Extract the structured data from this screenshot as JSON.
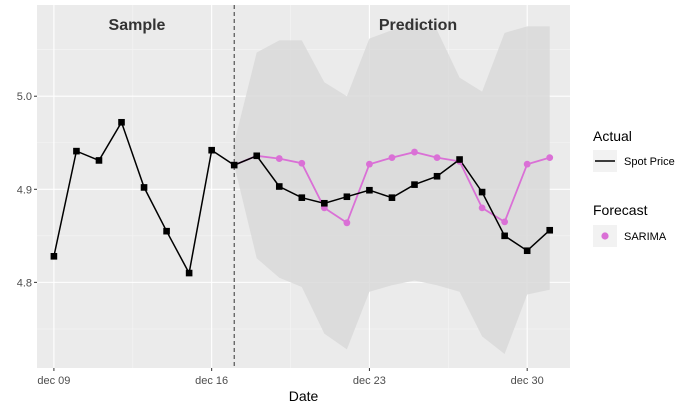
{
  "chart_data": {
    "type": "line",
    "xlabel": "Date",
    "ylabel": "",
    "title": "",
    "x_ticks": [
      {
        "day": 9,
        "label": "dec 09"
      },
      {
        "day": 16,
        "label": "dec 16"
      },
      {
        "day": 23,
        "label": "dec 23"
      },
      {
        "day": 30,
        "label": "dec 30"
      }
    ],
    "y_ticks": [
      {
        "value": 4.8,
        "label": "4.8"
      },
      {
        "value": 4.9,
        "label": "4.9"
      },
      {
        "value": 5.0,
        "label": "5.0"
      }
    ],
    "xlim": [
      8.25,
      31.9
    ],
    "ylim": [
      4.708,
      5.098
    ],
    "cutoff_day": 17,
    "regions": {
      "sample": "Sample",
      "prediction": "Prediction"
    },
    "series": [
      {
        "name": "Spot Price",
        "legend_group": "Actual",
        "color": "#000000",
        "marker": "square",
        "x": [
          9,
          10,
          11,
          12,
          13,
          14,
          15,
          16,
          17,
          18,
          19,
          20,
          21,
          22,
          23,
          24,
          25,
          26,
          27,
          28,
          29,
          30,
          31
        ],
        "y": [
          4.828,
          4.941,
          4.931,
          4.972,
          4.902,
          4.855,
          4.81,
          4.942,
          4.926,
          4.936,
          4.903,
          4.891,
          4.885,
          4.892,
          4.899,
          4.891,
          4.905,
          4.914,
          4.932,
          4.897,
          4.85,
          4.834,
          4.856
        ]
      },
      {
        "name": "SARIMA",
        "legend_group": "Forecast",
        "color": "#da70d6",
        "marker": "circle",
        "x": [
          17,
          18,
          19,
          20,
          21,
          22,
          23,
          24,
          25,
          26,
          27,
          28,
          29,
          30,
          31
        ],
        "y": [
          4.926,
          4.936,
          4.933,
          4.928,
          4.88,
          4.864,
          4.927,
          4.934,
          4.94,
          4.934,
          4.93,
          4.88,
          4.865,
          4.927,
          4.934
        ]
      }
    ],
    "band": {
      "x": [
        17,
        18,
        19,
        20,
        21,
        22,
        23,
        24,
        25,
        26,
        27,
        28,
        29,
        30,
        31
      ],
      "upper": [
        4.95,
        5.047,
        5.06,
        5.06,
        5.015,
        5.0,
        5.062,
        5.071,
        5.08,
        5.071,
        5.02,
        5.005,
        5.068,
        5.075,
        5.075
      ],
      "lower": [
        4.926,
        4.826,
        4.805,
        4.795,
        4.745,
        4.728,
        4.79,
        4.797,
        4.802,
        4.797,
        4.79,
        4.742,
        4.723,
        4.787,
        4.792
      ],
      "color": "#d9d9d9"
    },
    "legend": {
      "placement": "right",
      "groups": [
        {
          "title": "Actual",
          "entries": [
            "Spot Price"
          ]
        },
        {
          "title": "Forecast",
          "entries": [
            "SARIMA"
          ]
        }
      ]
    },
    "grid": true,
    "panel_background": "#ebebeb"
  }
}
